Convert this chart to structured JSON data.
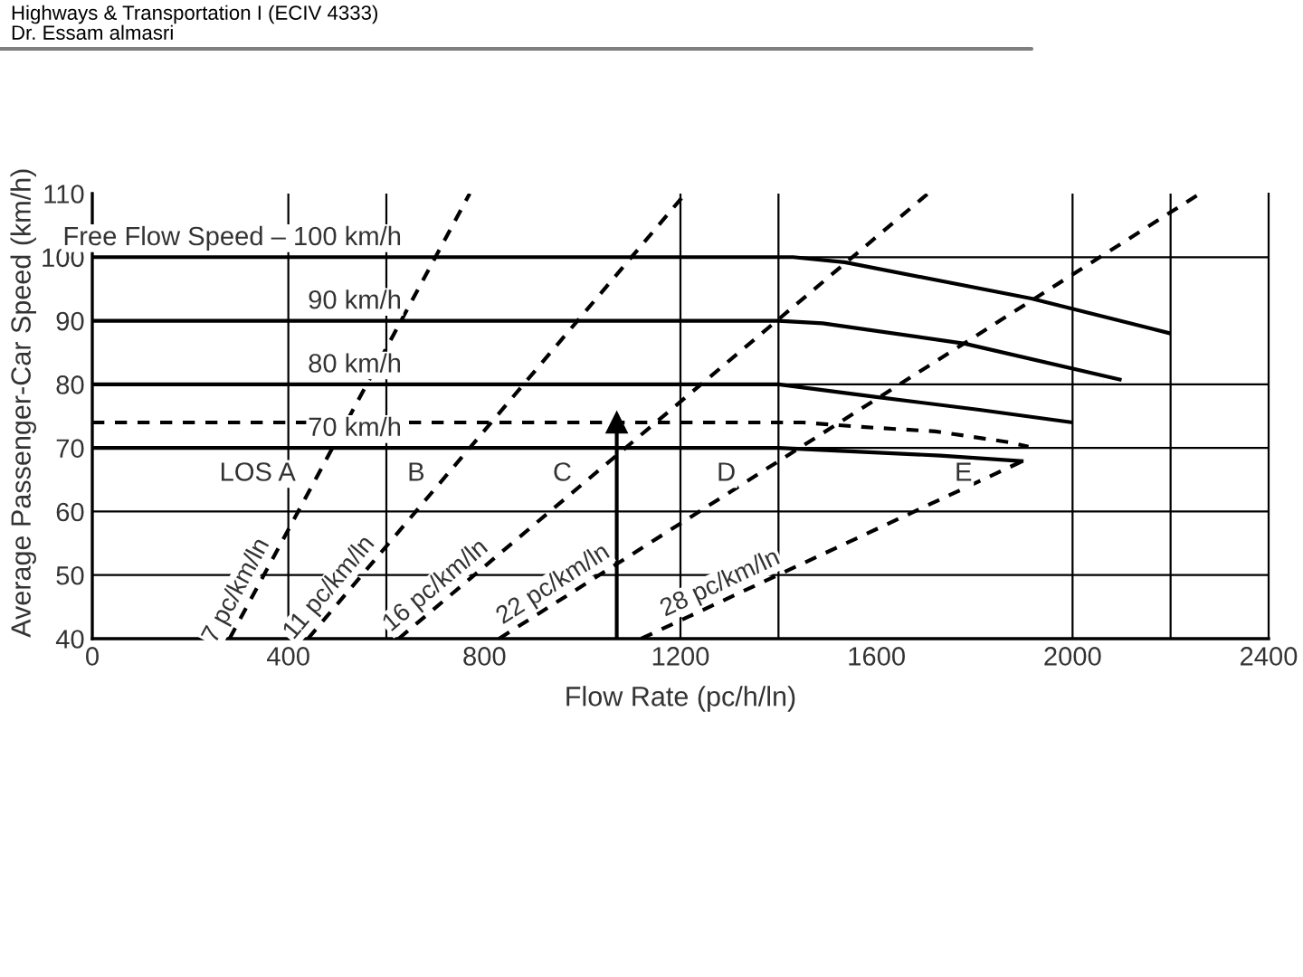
{
  "chart_data": {
    "type": "line",
    "title": "Highways & Transportation I (ECIV 4333)",
    "subtitle": "Dr. Essam almasri",
    "xlabel": "Flow Rate (pc/h/ln)",
    "ylabel": "Average Passenger-Car Speed (km/h)",
    "xlim": [
      0,
      2400
    ],
    "ylim": [
      40,
      110
    ],
    "xticks": [
      0,
      400,
      800,
      1200,
      1600,
      2000,
      2400
    ],
    "yticks": [
      40,
      50,
      60,
      70,
      80,
      90,
      100,
      110
    ],
    "series": [
      {
        "name": "Free Flow Speed – 100 km/h",
        "color": "#000000",
        "line_style": "solid",
        "x": [
          0,
          1430,
          1535,
          1916,
          2200
        ],
        "values": [
          100,
          100,
          99.2,
          93.5,
          88
        ]
      },
      {
        "name": "90 km/h",
        "color": "#000000",
        "line_style": "solid",
        "x": [
          0,
          1400,
          1490,
          1780,
          2100
        ],
        "values": [
          90,
          90,
          89.6,
          86.4,
          80.7
        ]
      },
      {
        "name": "80 km/h",
        "color": "#000000",
        "line_style": "solid",
        "x": [
          0,
          1400,
          1600,
          1810,
          2000
        ],
        "values": [
          80,
          80,
          78,
          76,
          74
        ]
      },
      {
        "name": "70 km/h",
        "color": "#000000",
        "line_style": "solid",
        "x": [
          0,
          1400,
          1730,
          1900
        ],
        "values": [
          70,
          70,
          68.8,
          67.9
        ]
      },
      {
        "color": "#000000",
        "line_style": "dashed",
        "x": [
          0,
          1450,
          1570,
          1720,
          1870,
          1910
        ],
        "values": [
          74,
          74,
          73.3,
          72.6,
          70.9,
          70.2
        ]
      },
      {
        "color": "#000000",
        "line_style": "solid",
        "marker": "triangle",
        "x": [
          1070,
          1070
        ],
        "values": [
          40,
          74
        ]
      },
      {
        "name": "7 pc/km/ln",
        "color": "#000000",
        "line_style": "dashed",
        "x": [
          280,
          770
        ],
        "values": [
          40,
          110
        ]
      },
      {
        "name": "11 pc/km/ln",
        "color": "#000000",
        "line_style": "dashed",
        "x": [
          440,
          1210
        ],
        "values": [
          40,
          110
        ]
      },
      {
        "name": "16 pc/km/ln",
        "color": "#000000",
        "line_style": "dashed",
        "x": [
          625,
          1705
        ],
        "values": [
          40,
          110
        ]
      },
      {
        "name": "22 pc/km/ln",
        "color": "#000000",
        "line_style": "dashed",
        "x": [
          830,
          2260
        ],
        "values": [
          40,
          110
        ]
      },
      {
        "name": "28 pc/km/ln",
        "color": "#000000",
        "line_style": "dashed",
        "x": [
          1120,
          1900
        ],
        "values": [
          40,
          68
        ]
      }
    ],
    "ref_lines": [
      {
        "axis": "y",
        "value": 50
      },
      {
        "axis": "y",
        "value": 60
      },
      {
        "axis": "y",
        "value": 70
      },
      {
        "axis": "y",
        "value": 80
      },
      {
        "axis": "y",
        "value": 100
      },
      {
        "axis": "x",
        "value": 400
      },
      {
        "axis": "x",
        "value": 600
      },
      {
        "axis": "x",
        "value": 1200
      },
      {
        "axis": "x",
        "value": 1400
      },
      {
        "axis": "x",
        "value": 2000
      },
      {
        "axis": "x",
        "value": 2200
      }
    ],
    "annotations": [
      "LOS A",
      "B",
      "C",
      "D",
      "E"
    ]
  }
}
